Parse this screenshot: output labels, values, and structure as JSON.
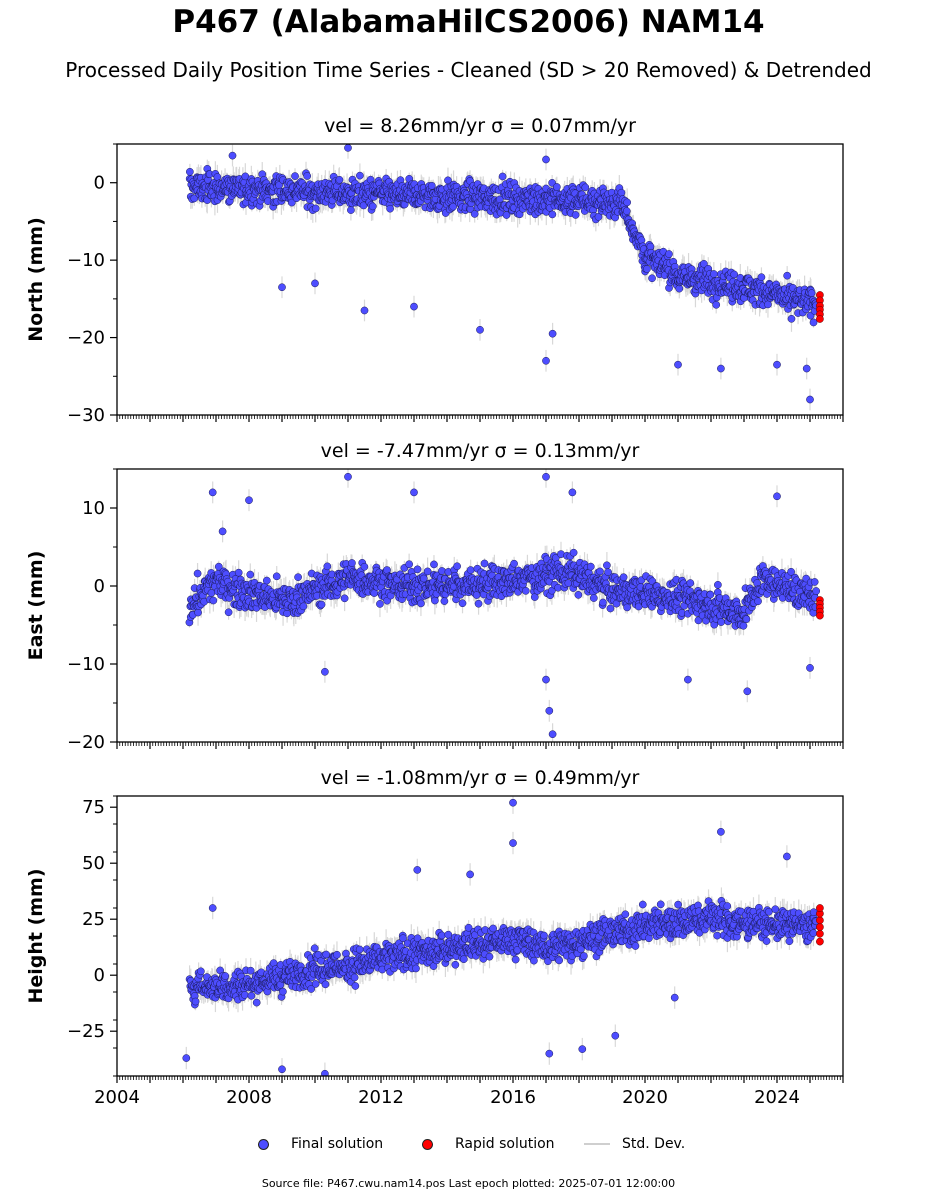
{
  "title": "P467 (AlabamaHilCS2006) NAM14",
  "subtitle": "Processed Daily Position Time Series - Cleaned (SD > 20 Removed) & Detrended",
  "legend": {
    "final": "Final solution",
    "rapid": "Rapid solution",
    "std": "Std. Dev."
  },
  "source_text": "Source file: P467.cwu.nam14.pos  Last epoch plotted: 2025-07-01 12:00:00",
  "colors": {
    "final": "#4d4dff",
    "rapid": "#ff0000",
    "std": "#c8c8c8"
  },
  "chart_data": [
    {
      "type": "scatter",
      "panel_title": "vel = 8.26mm/yr   σ = 0.07mm/yr",
      "ylabel": "North (mm)",
      "xlim": [
        2004,
        2026
      ],
      "ylim": [
        -30,
        5
      ],
      "yticks": [
        0,
        -10,
        -20,
        -30
      ],
      "yticklabels": [
        "0",
        "−10",
        "−20",
        "−30"
      ],
      "trend": [
        [
          2006.2,
          -0.5
        ],
        [
          2012.0,
          -1.5
        ],
        [
          2019.3,
          -2.5
        ],
        [
          2020.0,
          -9.5
        ],
        [
          2021.0,
          -12.0
        ],
        [
          2023.0,
          -13.5
        ],
        [
          2025.3,
          -16.0
        ]
      ],
      "scatter_amp": 2.5,
      "outliers": [
        [
          2009.0,
          -13.5
        ],
        [
          2010.0,
          -13.0
        ],
        [
          2011.5,
          -16.5
        ],
        [
          2013.0,
          -16.0
        ],
        [
          2015.0,
          -19.0
        ],
        [
          2017.0,
          -23.0
        ],
        [
          2017.2,
          -19.5
        ],
        [
          2021.0,
          -23.5
        ],
        [
          2022.3,
          -24.0
        ],
        [
          2024.0,
          -23.5
        ],
        [
          2024.9,
          -24.0
        ],
        [
          2025.0,
          -28.0
        ],
        [
          2007.5,
          3.5
        ],
        [
          2011.0,
          4.5
        ],
        [
          2017.0,
          3.0
        ]
      ],
      "rapid": {
        "x": 2025.3,
        "values": [
          -14.5,
          -15.2,
          -15.9,
          -16.4,
          -17.0,
          -17.6
        ]
      }
    },
    {
      "type": "scatter",
      "panel_title": "vel = -7.47mm/yr   σ = 0.13mm/yr",
      "ylabel": "East (mm)",
      "xlim": [
        2004,
        2026
      ],
      "ylim": [
        -20,
        15
      ],
      "yticks": [
        10,
        0,
        -10,
        -20
      ],
      "yticklabels": [
        "10",
        "0",
        "−10",
        "−20"
      ],
      "trend": [
        [
          2006.2,
          -2.5
        ],
        [
          2007.0,
          0.5
        ],
        [
          2009.0,
          -2.0
        ],
        [
          2011.0,
          1.0
        ],
        [
          2013.0,
          0.0
        ],
        [
          2016.0,
          0.5
        ],
        [
          2017.5,
          2.0
        ],
        [
          2019.0,
          -0.5
        ],
        [
          2021.0,
          -1.5
        ],
        [
          2023.0,
          -3.5
        ],
        [
          2023.6,
          1.0
        ],
        [
          2025.3,
          -2.0
        ]
      ],
      "scatter_amp": 2.8,
      "outliers": [
        [
          2006.9,
          12.0
        ],
        [
          2008.0,
          11.0
        ],
        [
          2011.0,
          14.0
        ],
        [
          2013.0,
          12.0
        ],
        [
          2017.0,
          14.0
        ],
        [
          2017.8,
          12.0
        ],
        [
          2017.1,
          -16.0
        ],
        [
          2017.2,
          -19.0
        ],
        [
          2017.0,
          -12.0
        ],
        [
          2010.3,
          -11.0
        ],
        [
          2021.3,
          -12.0
        ],
        [
          2023.1,
          -13.5
        ],
        [
          2024.0,
          11.5
        ],
        [
          2025.0,
          -10.5
        ],
        [
          2007.2,
          7.0
        ]
      ],
      "rapid": {
        "x": 2025.3,
        "values": [
          -1.8,
          -2.3,
          -2.8,
          -3.3,
          -3.8
        ]
      }
    },
    {
      "type": "scatter",
      "panel_title": "vel = -1.08mm/yr   σ = 0.49mm/yr",
      "ylabel": "Height (mm)",
      "xlim": [
        2004,
        2026
      ],
      "ylim": [
        -45,
        80
      ],
      "yticks": [
        75,
        50,
        25,
        0,
        -25
      ],
      "yticklabels": [
        "75",
        "50",
        "25",
        "0",
        "−25"
      ],
      "trend": [
        [
          2006.2,
          -5.0
        ],
        [
          2008.0,
          -4.0
        ],
        [
          2010.0,
          2.0
        ],
        [
          2012.0,
          7.0
        ],
        [
          2014.0,
          12.0
        ],
        [
          2016.0,
          16.0
        ],
        [
          2017.0,
          12.0
        ],
        [
          2018.0,
          15.0
        ],
        [
          2020.0,
          22.0
        ],
        [
          2022.0,
          26.0
        ],
        [
          2023.0,
          23.0
        ],
        [
          2025.3,
          22.0
        ]
      ],
      "scatter_amp": 9.0,
      "outliers": [
        [
          2016.0,
          77.0
        ],
        [
          2016.0,
          59.0
        ],
        [
          2022.3,
          64.0
        ],
        [
          2006.1,
          -37.0
        ],
        [
          2009.0,
          -42.0
        ],
        [
          2010.3,
          -44.0
        ],
        [
          2017.1,
          -35.0
        ],
        [
          2018.1,
          -33.0
        ],
        [
          2013.1,
          47.0
        ],
        [
          2014.7,
          45.0
        ],
        [
          2024.3,
          53.0
        ],
        [
          2020.9,
          -10.0
        ],
        [
          2019.1,
          -27.0
        ],
        [
          2006.9,
          30.0
        ]
      ],
      "rapid": {
        "x": 2025.3,
        "values": [
          15.0,
          18.5,
          21.5,
          24.5,
          27.5,
          30.0
        ]
      }
    }
  ],
  "xaxis": {
    "ticks": [
      2004,
      2008,
      2012,
      2016,
      2020,
      2024
    ],
    "ticklabels": [
      "2004",
      "2008",
      "2012",
      "2016",
      "2020",
      "2024"
    ],
    "data_start": 2006.2,
    "data_end": 2025.3
  }
}
